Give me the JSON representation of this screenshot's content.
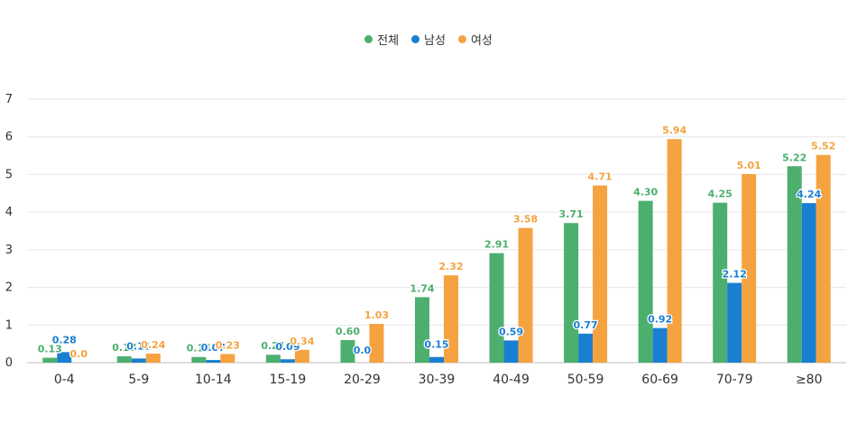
{
  "chart_data": {
    "type": "bar",
    "categories": [
      "0-4",
      "5-9",
      "10-14",
      "15-19",
      "20-29",
      "30-39",
      "40-49",
      "50-59",
      "60-69",
      "70-79",
      "≥80"
    ],
    "series": [
      {
        "name": "전체",
        "color": "#4caf6e",
        "values": [
          0.13,
          0.17,
          0.15,
          0.21,
          0.6,
          1.74,
          2.91,
          3.71,
          4.3,
          4.25,
          5.22
        ],
        "labels": [
          "0.13",
          "0.17",
          "0.15",
          "0.21",
          "0.60",
          "1.74",
          "2.91",
          "3.71",
          "4.30",
          "4.25",
          "5.22"
        ]
      },
      {
        "name": "남성",
        "color": "#1a7fd1",
        "values": [
          0.28,
          0.11,
          0.07,
          0.09,
          0.0,
          0.15,
          0.59,
          0.77,
          0.92,
          2.12,
          4.24
        ],
        "labels": [
          "0.28",
          "0.11",
          "0.07",
          "0.09",
          "0.0",
          "0.15",
          "0.59",
          "0.77",
          "0.92",
          "2.12",
          "4.24"
        ]
      },
      {
        "name": "여성",
        "color": "#f4a340",
        "values": [
          0.0,
          0.24,
          0.23,
          0.34,
          1.03,
          2.32,
          3.58,
          4.71,
          5.94,
          5.01,
          5.52
        ],
        "labels": [
          "0.0",
          "0.24",
          "0.23",
          "0.34",
          "1.03",
          "2.32",
          "3.58",
          "4.71",
          "5.94",
          "5.01",
          "5.52"
        ]
      }
    ],
    "y_ticks": [
      "0",
      "1",
      "2",
      "3",
      "4",
      "5",
      "6",
      "7"
    ],
    "ylim": [
      0,
      7
    ],
    "grid": true,
    "legend_position": "top-center"
  }
}
